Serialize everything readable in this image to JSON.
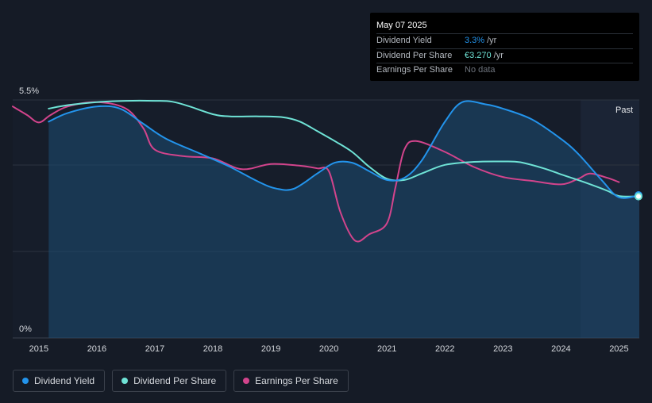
{
  "tooltip": {
    "date": "May 07 2025",
    "rows": [
      {
        "label": "Dividend Yield",
        "value": "3.3%",
        "unit": "/yr"
      },
      {
        "label": "Dividend Per Share",
        "value": "€3.270",
        "unit": "/yr"
      },
      {
        "label": "Earnings Per Share",
        "value": "No data",
        "unit": ""
      }
    ]
  },
  "legend": [
    {
      "label": "Dividend Yield",
      "color": "#2394ec"
    },
    {
      "label": "Dividend Per Share",
      "color": "#6fe3d6"
    },
    {
      "label": "Earnings Per Share",
      "color": "#d2448c"
    }
  ],
  "chart_data": {
    "type": "line",
    "y_top_label": "5.5%",
    "y_bottom_label": "0%",
    "ylim": [
      0,
      5.5
    ],
    "x_ticks": [
      "2015",
      "2016",
      "2017",
      "2018",
      "2019",
      "2020",
      "2021",
      "2022",
      "2023",
      "2024",
      "2025"
    ],
    "xlim": [
      2014.55,
      2025.35
    ],
    "forecast_start": 2024.34,
    "past_label": "Past",
    "colors": {
      "yield": "#2394ec",
      "dps": "#6fe3d6",
      "eps": "#d2448c"
    },
    "series": [
      {
        "name": "Dividend Yield",
        "key": "yield",
        "x": [
          2015.17,
          2015.5,
          2016.0,
          2016.4,
          2016.8,
          2017.2,
          2017.8,
          2018.3,
          2018.8,
          2019.1,
          2019.4,
          2019.8,
          2020.1,
          2020.4,
          2020.7,
          2021.0,
          2021.3,
          2021.6,
          2022.0,
          2022.3,
          2022.7,
          2023.0,
          2023.5,
          2024.0,
          2024.3,
          2024.7,
          2025.0,
          2025.35
        ],
        "values": [
          5.0,
          5.2,
          5.35,
          5.3,
          4.95,
          4.6,
          4.25,
          3.95,
          3.6,
          3.45,
          3.45,
          3.8,
          4.05,
          4.05,
          3.85,
          3.65,
          3.7,
          4.1,
          5.0,
          5.45,
          5.4,
          5.3,
          5.05,
          4.6,
          4.25,
          3.65,
          3.25,
          3.3
        ]
      },
      {
        "name": "Dividend Per Share",
        "key": "dps",
        "x": [
          2015.17,
          2015.5,
          2016.0,
          2016.5,
          2017.0,
          2017.3,
          2017.6,
          2018.0,
          2018.3,
          2018.8,
          2019.2,
          2019.5,
          2019.8,
          2020.1,
          2020.4,
          2020.7,
          2021.0,
          2021.3,
          2021.6,
          2022.0,
          2022.5,
          2023.0,
          2023.3,
          2023.7,
          2024.0,
          2024.4,
          2024.8,
          2025.0,
          2025.35
        ],
        "values": [
          5.3,
          5.38,
          5.45,
          5.48,
          5.48,
          5.46,
          5.35,
          5.17,
          5.12,
          5.12,
          5.1,
          5.0,
          4.78,
          4.55,
          4.3,
          3.95,
          3.68,
          3.65,
          3.8,
          4.0,
          4.07,
          4.08,
          4.06,
          3.92,
          3.78,
          3.6,
          3.4,
          3.28,
          3.27
        ]
      },
      {
        "name": "Earnings Per Share",
        "key": "eps",
        "x": [
          2014.55,
          2014.8,
          2015.0,
          2015.2,
          2015.5,
          2016.0,
          2016.5,
          2016.8,
          2017.0,
          2017.5,
          2018.0,
          2018.5,
          2019.0,
          2019.5,
          2019.8,
          2020.0,
          2020.2,
          2020.45,
          2020.7,
          2021.0,
          2021.15,
          2021.3,
          2021.5,
          2022.0,
          2022.5,
          2023.0,
          2023.5,
          2024.0,
          2024.3,
          2024.5,
          2024.8,
          2025.0
        ],
        "values": [
          5.35,
          5.15,
          4.98,
          5.15,
          5.35,
          5.45,
          5.3,
          4.85,
          4.35,
          4.2,
          4.15,
          3.9,
          4.02,
          3.98,
          3.92,
          3.85,
          2.9,
          2.25,
          2.4,
          2.65,
          3.5,
          4.35,
          4.55,
          4.3,
          3.95,
          3.72,
          3.63,
          3.55,
          3.68,
          3.8,
          3.7,
          3.6
        ]
      }
    ]
  }
}
